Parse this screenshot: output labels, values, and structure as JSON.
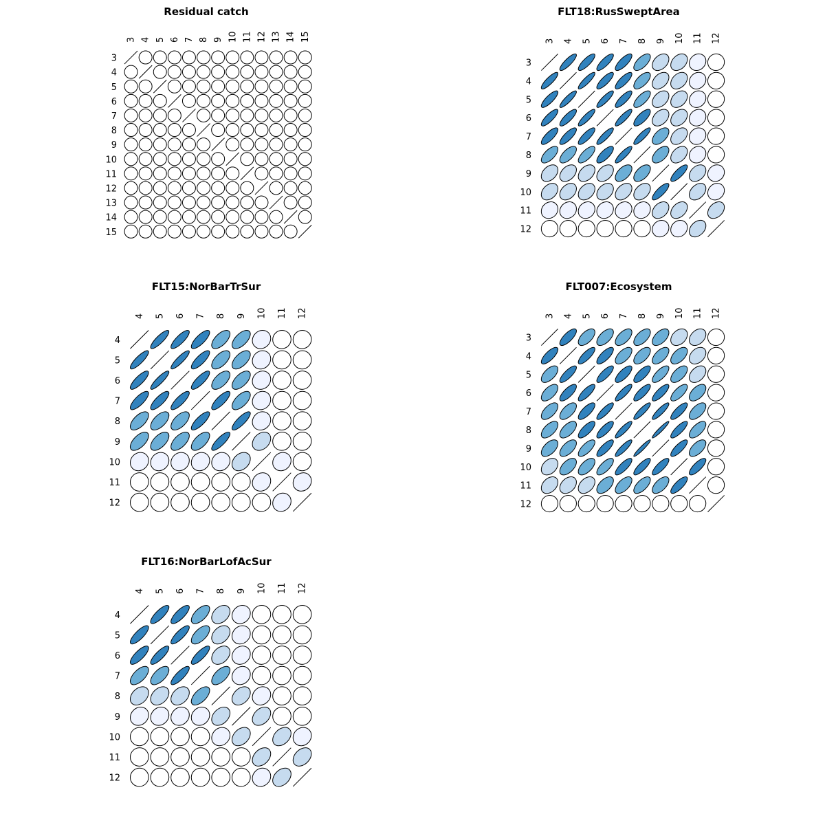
{
  "chart_data": [
    {
      "type": "heatmap",
      "style": "correlation-ellipse matrix",
      "title": "Residual catch",
      "ages": [
        "3",
        "4",
        "5",
        "6",
        "7",
        "8",
        "9",
        "10",
        "11",
        "12",
        "13",
        "14",
        "15"
      ],
      "corr": [
        [
          1,
          0,
          0,
          0,
          0,
          0,
          0,
          0,
          0,
          0,
          0,
          0,
          0
        ],
        [
          0,
          1,
          0,
          0,
          0,
          0,
          0,
          0,
          0,
          0,
          0,
          0,
          0
        ],
        [
          0,
          0,
          1,
          0,
          0,
          0,
          0,
          0,
          0,
          0,
          0,
          0,
          0
        ],
        [
          0,
          0,
          0,
          1,
          0,
          0,
          0,
          0,
          0,
          0,
          0,
          0,
          0
        ],
        [
          0,
          0,
          0,
          0,
          1,
          0,
          0,
          0,
          0,
          0,
          0,
          0,
          0
        ],
        [
          0,
          0,
          0,
          0,
          0,
          1,
          0,
          0,
          0,
          0,
          0,
          0,
          0
        ],
        [
          0,
          0,
          0,
          0,
          0,
          0,
          1,
          0,
          0,
          0,
          0,
          0,
          0
        ],
        [
          0,
          0,
          0,
          0,
          0,
          0,
          0,
          1,
          0,
          0,
          0,
          0,
          0
        ],
        [
          0,
          0,
          0,
          0,
          0,
          0,
          0,
          0,
          1,
          0,
          0,
          0,
          0
        ],
        [
          0,
          0,
          0,
          0,
          0,
          0,
          0,
          0,
          0,
          1,
          0,
          0,
          0
        ],
        [
          0,
          0,
          0,
          0,
          0,
          0,
          0,
          0,
          0,
          0,
          1,
          0,
          0
        ],
        [
          0,
          0,
          0,
          0,
          0,
          0,
          0,
          0,
          0,
          0,
          0,
          1,
          0
        ],
        [
          0,
          0,
          0,
          0,
          0,
          0,
          0,
          0,
          0,
          0,
          0,
          0,
          1
        ]
      ]
    },
    {
      "type": "heatmap",
      "style": "correlation-ellipse matrix",
      "title": "FLT18:RusSweptArea",
      "ages": [
        "3",
        "4",
        "5",
        "6",
        "7",
        "8",
        "9",
        "10",
        "11",
        "12"
      ],
      "corr": [
        [
          1,
          0.85,
          0.82,
          0.82,
          0.78,
          0.65,
          0.38,
          0.35,
          0.15,
          0.02
        ],
        [
          0.85,
          1,
          0.88,
          0.82,
          0.8,
          0.65,
          0.4,
          0.35,
          0.15,
          0.02
        ],
        [
          0.82,
          0.88,
          1,
          0.87,
          0.82,
          0.72,
          0.4,
          0.35,
          0.15,
          0.02
        ],
        [
          0.82,
          0.82,
          0.87,
          1,
          0.87,
          0.75,
          0.4,
          0.35,
          0.15,
          0.02
        ],
        [
          0.78,
          0.8,
          0.82,
          0.87,
          1,
          0.87,
          0.55,
          0.4,
          0.15,
          0.02
        ],
        [
          0.65,
          0.65,
          0.72,
          0.75,
          0.87,
          1,
          0.55,
          0.4,
          0.15,
          0.02
        ],
        [
          0.38,
          0.4,
          0.4,
          0.4,
          0.55,
          0.55,
          1,
          0.8,
          0.35,
          0.12
        ],
        [
          0.35,
          0.35,
          0.35,
          0.35,
          0.4,
          0.4,
          0.8,
          1,
          0.38,
          0.15
        ],
        [
          0.15,
          0.15,
          0.15,
          0.15,
          0.15,
          0.15,
          0.35,
          0.38,
          1,
          0.35
        ],
        [
          0.02,
          0.02,
          0.02,
          0.02,
          0.02,
          0.02,
          0.12,
          0.15,
          0.35,
          1
        ]
      ]
    },
    {
      "type": "heatmap",
      "style": "correlation-ellipse matrix",
      "title": "FLT15:NorBarTrSur",
      "ages": [
        "4",
        "5",
        "6",
        "7",
        "8",
        "9",
        "10",
        "11",
        "12"
      ],
      "corr": [
        [
          1,
          0.85,
          0.82,
          0.78,
          0.62,
          0.6,
          0.12,
          0.02,
          0.02
        ],
        [
          0.85,
          1,
          0.88,
          0.8,
          0.6,
          0.58,
          0.12,
          0.02,
          0.02
        ],
        [
          0.82,
          0.88,
          1,
          0.82,
          0.6,
          0.6,
          0.12,
          0.02,
          0.02
        ],
        [
          0.78,
          0.8,
          0.82,
          1,
          0.8,
          0.62,
          0.12,
          0.02,
          0.02
        ],
        [
          0.62,
          0.6,
          0.6,
          0.8,
          1,
          0.82,
          0.12,
          0.02,
          0.02
        ],
        [
          0.6,
          0.58,
          0.6,
          0.62,
          0.82,
          1,
          0.3,
          0.02,
          0.02
        ],
        [
          0.12,
          0.12,
          0.12,
          0.12,
          0.12,
          0.3,
          1,
          0.12,
          0.02
        ],
        [
          0.02,
          0.02,
          0.02,
          0.02,
          0.02,
          0.02,
          0.12,
          1,
          0.12
        ],
        [
          0.02,
          0.02,
          0.02,
          0.02,
          0.02,
          0.02,
          0.02,
          0.12,
          1
        ]
      ]
    },
    {
      "type": "heatmap",
      "style": "correlation-ellipse matrix",
      "title": "FLT007:Ecosystem",
      "ages": [
        "3",
        "4",
        "5",
        "6",
        "7",
        "8",
        "9",
        "10",
        "11",
        "12"
      ],
      "corr": [
        [
          1,
          0.75,
          0.6,
          0.6,
          0.6,
          0.6,
          0.55,
          0.35,
          0.35,
          0.02
        ],
        [
          0.75,
          1,
          0.8,
          0.75,
          0.62,
          0.6,
          0.6,
          0.55,
          0.35,
          0.02
        ],
        [
          0.6,
          0.8,
          1,
          0.8,
          0.75,
          0.75,
          0.72,
          0.6,
          0.4,
          0.02
        ],
        [
          0.6,
          0.75,
          0.8,
          1,
          0.85,
          0.8,
          0.8,
          0.72,
          0.55,
          0.02
        ],
        [
          0.6,
          0.62,
          0.75,
          0.85,
          1,
          0.88,
          0.88,
          0.8,
          0.6,
          0.02
        ],
        [
          0.6,
          0.6,
          0.75,
          0.8,
          0.88,
          1,
          0.95,
          0.82,
          0.65,
          0.02
        ],
        [
          0.55,
          0.6,
          0.72,
          0.8,
          0.88,
          0.95,
          1,
          0.8,
          0.6,
          0.02
        ],
        [
          0.35,
          0.55,
          0.6,
          0.72,
          0.8,
          0.82,
          0.8,
          1,
          0.78,
          0.02
        ],
        [
          0.35,
          0.35,
          0.4,
          0.55,
          0.6,
          0.65,
          0.6,
          0.78,
          1,
          0.02
        ],
        [
          0.02,
          0.02,
          0.02,
          0.02,
          0.02,
          0.02,
          0.02,
          0.02,
          0.02,
          1
        ]
      ]
    },
    {
      "type": "heatmap",
      "style": "correlation-ellipse matrix",
      "title": "FLT16:NorBarLofAcSur",
      "ages": [
        "4",
        "5",
        "6",
        "7",
        "8",
        "9",
        "10",
        "11",
        "12"
      ],
      "corr": [
        [
          1,
          0.8,
          0.78,
          0.62,
          0.35,
          0.15,
          0.02,
          0.02,
          0.02
        ],
        [
          0.8,
          1,
          0.82,
          0.62,
          0.35,
          0.15,
          0.02,
          0.02,
          0.02
        ],
        [
          0.78,
          0.82,
          1,
          0.82,
          0.35,
          0.15,
          0.02,
          0.02,
          0.02
        ],
        [
          0.62,
          0.62,
          0.82,
          1,
          0.6,
          0.15,
          0.02,
          0.02,
          0.02
        ],
        [
          0.35,
          0.35,
          0.35,
          0.6,
          1,
          0.35,
          0.15,
          0.02,
          0.02
        ],
        [
          0.15,
          0.15,
          0.15,
          0.15,
          0.35,
          1,
          0.35,
          0.02,
          0.02
        ],
        [
          0.02,
          0.02,
          0.02,
          0.02,
          0.15,
          0.35,
          1,
          0.35,
          0.12
        ],
        [
          0.02,
          0.02,
          0.02,
          0.02,
          0.02,
          0.02,
          0.35,
          1,
          0.35
        ],
        [
          0.02,
          0.02,
          0.02,
          0.02,
          0.02,
          0.02,
          0.12,
          0.35,
          1
        ]
      ]
    }
  ],
  "colors": {
    "scale": [
      "#ffffff",
      "#eff3ff",
      "#c6dbef",
      "#6baed6",
      "#3182bd"
    ],
    "outline": "#000000"
  }
}
